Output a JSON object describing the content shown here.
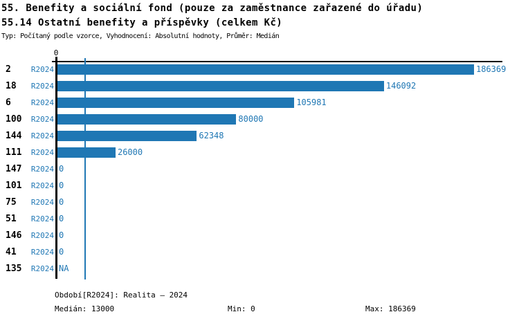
{
  "header": {
    "title1": "55. Benefity a sociální fond (pouze za zaměstnance zařazené do úřadu)",
    "title2": "55.14 Ostatní benefity a příspěvky (celkem Kč)",
    "subtitle": "Typ: Počítaný podle vzorce, Vyhodnocení: Absolutní hodnoty, Průměr: Medián"
  },
  "chart_data": {
    "type": "bar",
    "orientation": "horizontal",
    "title": "55.14 Ostatní benefity a příspěvky (celkem Kč)",
    "series_label": "R2024",
    "categories": [
      "2",
      "18",
      "6",
      "100",
      "144",
      "111",
      "147",
      "101",
      "75",
      "51",
      "146",
      "41",
      "135"
    ],
    "values": [
      186369,
      146092,
      105981,
      80000,
      62348,
      26000,
      0,
      0,
      0,
      0,
      0,
      0,
      null
    ],
    "value_labels": [
      "186369",
      "146092",
      "105981",
      "80000",
      "62348",
      "26000",
      "0",
      "0",
      "0",
      "0",
      "0",
      "0",
      "NA"
    ],
    "xlim": [
      0,
      200000
    ],
    "axis_tick_label": "0",
    "median_value": 13000,
    "grid": false,
    "legend_position": "none",
    "bar_color": "#1f77b4"
  },
  "footer": {
    "period": "Období[R2024]: Realita – 2024",
    "median": "Medián: 13000",
    "min": "Min: 0",
    "max": "Max: 186369"
  },
  "colors": {
    "accent": "#1f77b4",
    "text": "#000000",
    "background": "#ffffff"
  }
}
